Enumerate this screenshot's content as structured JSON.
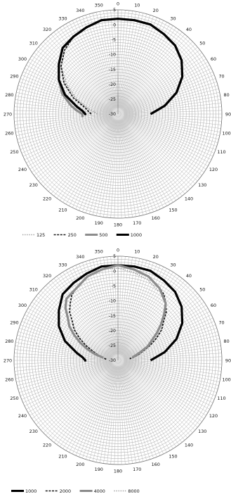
{
  "chart_data": [
    {
      "type": "polar-line",
      "angle_ticks": [
        "0",
        "10",
        "20",
        "30",
        "40",
        "50",
        "60",
        "70",
        "80",
        "90",
        "100",
        "110",
        "120",
        "130",
        "140",
        "150",
        "160",
        "170",
        "180",
        "190",
        "200",
        "210",
        "220",
        "230",
        "240",
        "250",
        "260",
        "270",
        "280",
        "290",
        "300",
        "310",
        "320",
        "330",
        "340",
        "350"
      ],
      "radial_ticks": [
        "5",
        "0",
        "-5",
        "-10",
        "-15",
        "-20",
        "-25",
        "-30"
      ],
      "rlim": [
        -30,
        5
      ],
      "series": [
        {
          "name": "125",
          "color": "#9a9a9a",
          "style": "dotted",
          "points": [
            [
              270,
              -23
            ],
            [
              275,
              -22
            ],
            [
              280,
              -20
            ],
            [
              290,
              -15
            ],
            [
              300,
              -10
            ],
            [
              310,
              -5
            ],
            [
              320,
              -2
            ],
            [
              330,
              0
            ],
            [
              340,
              1
            ],
            [
              350,
              2
            ],
            [
              0,
              2
            ],
            [
              10,
              2
            ],
            [
              20,
              2
            ],
            [
              30,
              1
            ],
            [
              40,
              0
            ],
            [
              50,
              -2
            ],
            [
              60,
              -5
            ],
            [
              70,
              -9
            ],
            [
              80,
              -14
            ],
            [
              85,
              -17
            ],
            [
              90,
              -19
            ]
          ]
        },
        {
          "name": "250",
          "color": "#1a1a1a",
          "style": "dashed",
          "points": [
            [
              270,
              -21
            ],
            [
              275,
              -20
            ],
            [
              280,
              -19
            ],
            [
              290,
              -14
            ],
            [
              300,
              -9
            ],
            [
              310,
              -5
            ],
            [
              320,
              -2
            ],
            [
              330,
              0
            ],
            [
              340,
              1
            ],
            [
              350,
              2
            ],
            [
              0,
              2
            ],
            [
              10,
              2
            ],
            [
              20,
              2
            ],
            [
              30,
              1
            ],
            [
              40,
              0
            ],
            [
              50,
              -2
            ],
            [
              60,
              -5
            ],
            [
              70,
              -9
            ],
            [
              80,
              -14
            ],
            [
              85,
              -17
            ],
            [
              90,
              -19
            ]
          ]
        },
        {
          "name": "500",
          "color": "#8c8c8c",
          "style": "thick",
          "points": [
            [
              265,
              -18
            ],
            [
              270,
              -18
            ],
            [
              275,
              -16
            ],
            [
              280,
              -14
            ],
            [
              290,
              -10
            ],
            [
              300,
              -7
            ],
            [
              310,
              -4
            ],
            [
              320,
              -1
            ],
            [
              330,
              0
            ],
            [
              340,
              1
            ],
            [
              350,
              2
            ],
            [
              0,
              2
            ],
            [
              10,
              2
            ],
            [
              20,
              2
            ],
            [
              30,
              1
            ],
            [
              40,
              0
            ],
            [
              50,
              -2
            ],
            [
              60,
              -5
            ],
            [
              70,
              -9
            ],
            [
              80,
              -14
            ],
            [
              85,
              -17
            ],
            [
              90,
              -19
            ]
          ]
        },
        {
          "name": "1000",
          "color": "#000000",
          "style": "thick",
          "points": [
            [
              268,
              -19
            ],
            [
              270,
              -19
            ],
            [
              275,
              -18
            ],
            [
              280,
              -16
            ],
            [
              290,
              -11
            ],
            [
              300,
              -7
            ],
            [
              310,
              -4
            ],
            [
              320,
              -1
            ],
            [
              330,
              0
            ],
            [
              340,
              1
            ],
            [
              350,
              2
            ],
            [
              0,
              2
            ],
            [
              10,
              2
            ],
            [
              20,
              2
            ],
            [
              30,
              1
            ],
            [
              40,
              0
            ],
            [
              50,
              -2
            ],
            [
              60,
              -5
            ],
            [
              70,
              -9
            ],
            [
              80,
              -14
            ],
            [
              85,
              -17
            ],
            [
              90,
              -19
            ]
          ]
        }
      ]
    },
    {
      "type": "polar-line",
      "angle_ticks": [
        "0",
        "10",
        "20",
        "30",
        "40",
        "50",
        "60",
        "70",
        "80",
        "90",
        "100",
        "110",
        "120",
        "130",
        "140",
        "150",
        "160",
        "170",
        "180",
        "190",
        "200",
        "210",
        "220",
        "230",
        "240",
        "250",
        "260",
        "270",
        "280",
        "290",
        "300",
        "310",
        "320",
        "330",
        "340",
        "350"
      ],
      "radial_ticks": [
        "5",
        "0",
        "-5",
        "-10",
        "-15",
        "-20",
        "-25",
        "-30"
      ],
      "rlim": [
        -30,
        5
      ],
      "series": [
        {
          "name": "1000",
          "color": "#000000",
          "style": "thick",
          "points": [
            [
              268,
              -19
            ],
            [
              270,
              -19
            ],
            [
              275,
              -18
            ],
            [
              280,
              -16
            ],
            [
              290,
              -11
            ],
            [
              300,
              -7
            ],
            [
              310,
              -4
            ],
            [
              320,
              -1
            ],
            [
              330,
              0
            ],
            [
              340,
              1
            ],
            [
              350,
              2
            ],
            [
              0,
              2
            ],
            [
              10,
              2
            ],
            [
              20,
              2
            ],
            [
              30,
              1
            ],
            [
              40,
              0
            ],
            [
              50,
              -2
            ],
            [
              60,
              -5
            ],
            [
              70,
              -9
            ],
            [
              80,
              -14
            ],
            [
              85,
              -17
            ],
            [
              90,
              -19
            ]
          ]
        },
        {
          "name": "2000",
          "color": "#1a1a1a",
          "style": "dashed",
          "points": [
            [
              275,
              -26
            ],
            [
              280,
              -25
            ],
            [
              285,
              -23
            ],
            [
              290,
              -21
            ],
            [
              295,
              -18
            ],
            [
              300,
              -15
            ],
            [
              305,
              -12
            ],
            [
              310,
              -10
            ],
            [
              315,
              -7
            ],
            [
              320,
              -5
            ],
            [
              325,
              -3
            ],
            [
              330,
              -2
            ],
            [
              340,
              0
            ],
            [
              350,
              1
            ],
            [
              0,
              2
            ],
            [
              10,
              1
            ],
            [
              20,
              0
            ],
            [
              30,
              -2
            ],
            [
              35,
              -3
            ],
            [
              40,
              -5
            ],
            [
              45,
              -7
            ],
            [
              50,
              -10
            ],
            [
              55,
              -12
            ],
            [
              60,
              -15
            ],
            [
              65,
              -18
            ],
            [
              70,
              -21
            ],
            [
              75,
              -23
            ],
            [
              80,
              -25
            ],
            [
              82,
              -26
            ]
          ]
        },
        {
          "name": "4000",
          "color": "#8c8c8c",
          "style": "thick",
          "points": [
            [
              280,
              -25
            ],
            [
              285,
              -22
            ],
            [
              290,
              -19
            ],
            [
              295,
              -16
            ],
            [
              300,
              -13
            ],
            [
              305,
              -10
            ],
            [
              310,
              -8
            ],
            [
              315,
              -5
            ],
            [
              320,
              -3
            ],
            [
              330,
              -2
            ],
            [
              340,
              0
            ],
            [
              350,
              1
            ],
            [
              0,
              2
            ],
            [
              10,
              1
            ],
            [
              20,
              0
            ],
            [
              30,
              -2
            ],
            [
              40,
              -5
            ],
            [
              45,
              -8
            ],
            [
              50,
              -11
            ],
            [
              55,
              -14
            ],
            [
              60,
              -17
            ],
            [
              65,
              -19
            ],
            [
              70,
              -22
            ],
            [
              75,
              -24
            ],
            [
              78,
              -25
            ]
          ]
        },
        {
          "name": "8000",
          "color": "#9a9a9a",
          "style": "dotted",
          "points": [
            [
              340,
              0
            ],
            [
              350,
              1
            ],
            [
              0,
              1
            ],
            [
              10,
              0
            ],
            [
              20,
              -1
            ],
            [
              30,
              -3
            ]
          ]
        }
      ]
    }
  ]
}
